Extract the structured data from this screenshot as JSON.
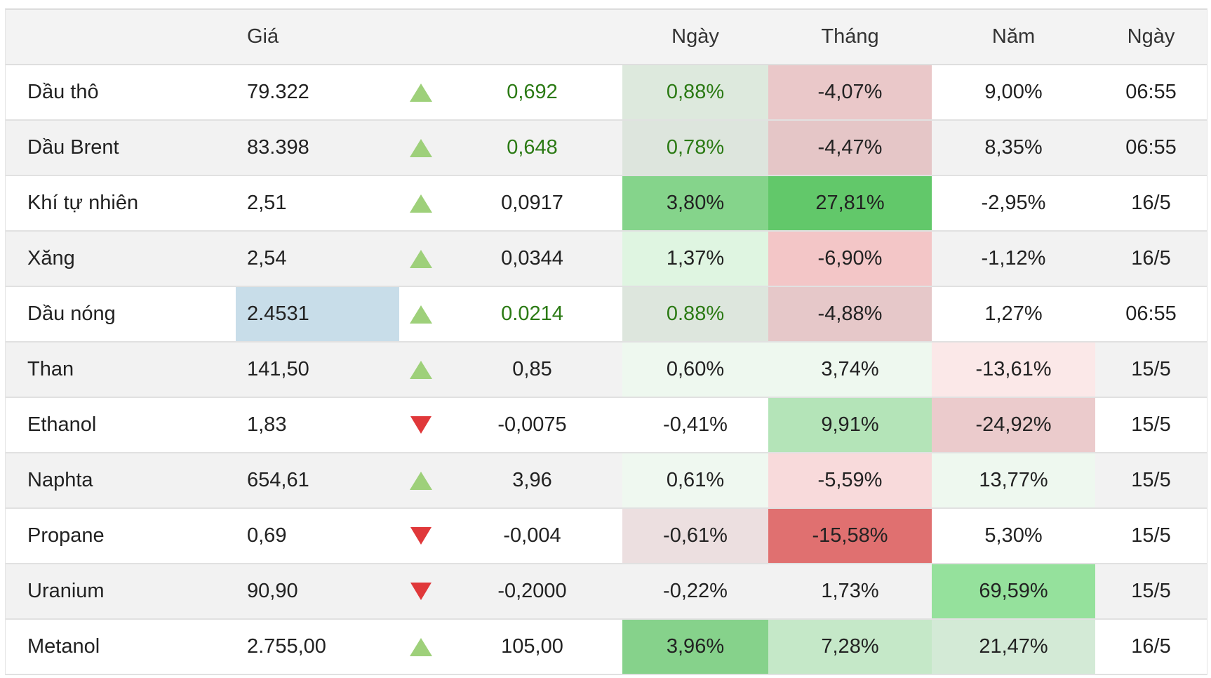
{
  "columns": {
    "name": "",
    "price": "Giá",
    "direction": "",
    "change": "",
    "day": "Ngày",
    "month": "Tháng",
    "year": "Năm",
    "time": "Ngày"
  },
  "colors": {
    "up_arrow": "#9ed07a",
    "down_arrow": "#e0383a",
    "positive_text": "#2b7a14",
    "default_text": "#222222",
    "highlight_price_bg": "#c8dde9"
  },
  "rows": [
    {
      "name": "Dầu thô",
      "price": "79.322",
      "direction": "up",
      "change": "0,692",
      "day": "0,88%",
      "month": "-4,07%",
      "year": "9,00%",
      "time": "06:55",
      "price_bg": "",
      "day_bg": "#dde9dd",
      "month_bg": "#eac8c9",
      "year_bg": "",
      "green_text": true
    },
    {
      "name": "Dầu Brent",
      "price": "83.398",
      "direction": "up",
      "change": "0,648",
      "day": "0,78%",
      "month": "-4,47%",
      "year": "8,35%",
      "time": "06:55",
      "price_bg": "",
      "day_bg": "#dde5dd",
      "month_bg": "#e5c6c7",
      "year_bg": "",
      "green_text": true
    },
    {
      "name": "Khí tự nhiên",
      "price": "2,51",
      "direction": "up",
      "change": "0,0917",
      "day": "3,80%",
      "month": "27,81%",
      "year": "-2,95%",
      "time": "16/5",
      "price_bg": "",
      "day_bg": "#85d48b",
      "month_bg": "#62c86a",
      "year_bg": "",
      "green_text": false
    },
    {
      "name": "Xăng",
      "price": "2,54",
      "direction": "up",
      "change": "0,0344",
      "day": "1,37%",
      "month": "-6,90%",
      "year": "-1,12%",
      "time": "16/5",
      "price_bg": "",
      "day_bg": "#dff5e1",
      "month_bg": "#f3c6c7",
      "year_bg": "",
      "green_text": false
    },
    {
      "name": "Dầu nóng",
      "price": "2.4531",
      "direction": "up",
      "change": "0.0214",
      "day": "0.88%",
      "month": "-4,88%",
      "year": "1,27%",
      "time": "06:55",
      "price_bg": "#c8dde9",
      "day_bg": "#dde6dd",
      "month_bg": "#e6c8c9",
      "year_bg": "",
      "green_text": true
    },
    {
      "name": "Than",
      "price": "141,50",
      "direction": "up",
      "change": "0,85",
      "day": "0,60%",
      "month": "3,74%",
      "year": "-13,61%",
      "time": "15/5",
      "price_bg": "",
      "day_bg": "#eef8ef",
      "month_bg": "#eef8ef",
      "year_bg": "#fbe8e8",
      "green_text": false
    },
    {
      "name": "Ethanol",
      "price": "1,83",
      "direction": "down",
      "change": "-0,0075",
      "day": "-0,41%",
      "month": "9,91%",
      "year": "-24,92%",
      "time": "15/5",
      "price_bg": "",
      "day_bg": "",
      "month_bg": "#b4e4b8",
      "year_bg": "#ebcbcc",
      "green_text": false
    },
    {
      "name": "Naphta",
      "price": "654,61",
      "direction": "up",
      "change": "3,96",
      "day": "0,61%",
      "month": "-5,59%",
      "year": "13,77%",
      "time": "15/5",
      "price_bg": "",
      "day_bg": "#eff8f0",
      "month_bg": "#f8dadb",
      "year_bg": "#eef8ef",
      "green_text": false
    },
    {
      "name": "Propane",
      "price": "0,69",
      "direction": "down",
      "change": "-0,004",
      "day": "-0,61%",
      "month": "-15,58%",
      "year": "5,30%",
      "time": "15/5",
      "price_bg": "",
      "day_bg": "#ecdfe0",
      "month_bg": "#e07070",
      "year_bg": "",
      "green_text": false
    },
    {
      "name": "Uranium",
      "price": "90,90",
      "direction": "down",
      "change": "-0,2000",
      "day": "-0,22%",
      "month": "1,73%",
      "year": "69,59%",
      "time": "15/5",
      "price_bg": "",
      "day_bg": "",
      "month_bg": "",
      "year_bg": "#95e19c",
      "green_text": false
    },
    {
      "name": "Metanol",
      "price": "2.755,00",
      "direction": "up",
      "change": "105,00",
      "day": "3,96%",
      "month": "7,28%",
      "year": "21,47%",
      "time": "16/5",
      "price_bg": "",
      "day_bg": "#86d28b",
      "month_bg": "#c5e8c8",
      "year_bg": "#d3ead6",
      "green_text": false
    }
  ]
}
